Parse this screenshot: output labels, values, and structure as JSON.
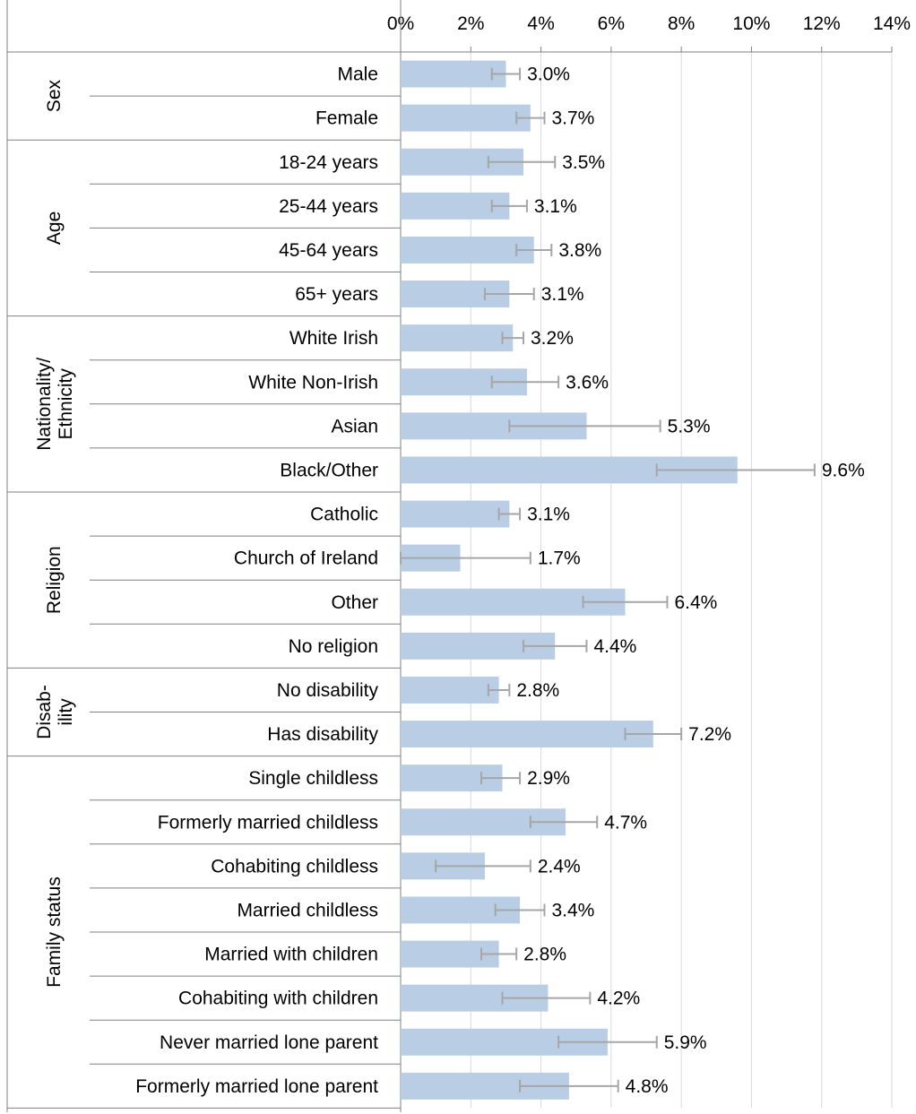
{
  "chart_data": {
    "type": "bar",
    "orientation": "horizontal",
    "title": "",
    "xlabel": "",
    "ylabel": "",
    "xlim": [
      0,
      14
    ],
    "x_ticks": [
      "0%",
      "2%",
      "4%",
      "6%",
      "8%",
      "10%",
      "12%",
      "14%"
    ],
    "grid": true,
    "legend": "none",
    "bar_color": "#b9cde5",
    "error_color": "#a6a6a6",
    "groups": [
      {
        "name": "Sex",
        "categories": [
          {
            "label": "Male",
            "value": 3.0,
            "value_label": "3.0%",
            "ci": [
              2.6,
              3.4
            ]
          },
          {
            "label": "Female",
            "value": 3.7,
            "value_label": "3.7%",
            "ci": [
              3.3,
              4.1
            ]
          }
        ]
      },
      {
        "name": "Age",
        "categories": [
          {
            "label": "18-24 years",
            "value": 3.5,
            "value_label": "3.5%",
            "ci": [
              2.5,
              4.4
            ]
          },
          {
            "label": "25-44 years",
            "value": 3.1,
            "value_label": "3.1%",
            "ci": [
              2.6,
              3.6
            ]
          },
          {
            "label": "45-64 years",
            "value": 3.8,
            "value_label": "3.8%",
            "ci": [
              3.3,
              4.3
            ]
          },
          {
            "label": "65+ years",
            "value": 3.1,
            "value_label": "3.1%",
            "ci": [
              2.4,
              3.8
            ]
          }
        ]
      },
      {
        "name": "Nationality/ Ethnicity",
        "name_lines": [
          "Nationality/",
          "Ethnicity"
        ],
        "categories": [
          {
            "label": "White Irish",
            "value": 3.2,
            "value_label": "3.2%",
            "ci": [
              2.9,
              3.5
            ]
          },
          {
            "label": "White Non-Irish",
            "value": 3.6,
            "value_label": "3.6%",
            "ci": [
              2.6,
              4.5
            ]
          },
          {
            "label": "Asian",
            "value": 5.3,
            "value_label": "5.3%",
            "ci": [
              3.1,
              7.4
            ]
          },
          {
            "label": "Black/Other",
            "value": 9.6,
            "value_label": "9.6%",
            "ci": [
              7.3,
              11.8
            ]
          }
        ]
      },
      {
        "name": "Religion",
        "categories": [
          {
            "label": "Catholic",
            "value": 3.1,
            "value_label": "3.1%",
            "ci": [
              2.8,
              3.4
            ]
          },
          {
            "label": "Church of Ireland",
            "value": 1.7,
            "value_label": "1.7%",
            "ci": [
              0.0,
              3.7
            ]
          },
          {
            "label": "Other",
            "value": 6.4,
            "value_label": "6.4%",
            "ci": [
              5.2,
              7.6
            ]
          },
          {
            "label": "No religion",
            "value": 4.4,
            "value_label": "4.4%",
            "ci": [
              3.5,
              5.3
            ]
          }
        ]
      },
      {
        "name": "Disab- ility",
        "name_lines": [
          "Disab-",
          "ility"
        ],
        "categories": [
          {
            "label": "No disability",
            "value": 2.8,
            "value_label": "2.8%",
            "ci": [
              2.5,
              3.1
            ]
          },
          {
            "label": "Has disability",
            "value": 7.2,
            "value_label": "7.2%",
            "ci": [
              6.4,
              8.0
            ]
          }
        ]
      },
      {
        "name": "Family status",
        "categories": [
          {
            "label": "Single childless",
            "value": 2.9,
            "value_label": "2.9%",
            "ci": [
              2.3,
              3.4
            ]
          },
          {
            "label": "Formerly married childless",
            "value": 4.7,
            "value_label": "4.7%",
            "ci": [
              3.7,
              5.6
            ]
          },
          {
            "label": "Cohabiting childless",
            "value": 2.4,
            "value_label": "2.4%",
            "ci": [
              1.0,
              3.7
            ]
          },
          {
            "label": "Married childless",
            "value": 3.4,
            "value_label": "3.4%",
            "ci": [
              2.7,
              4.1
            ]
          },
          {
            "label": "Married with children",
            "value": 2.8,
            "value_label": "2.8%",
            "ci": [
              2.3,
              3.3
            ]
          },
          {
            "label": "Cohabiting with children",
            "value": 4.2,
            "value_label": "4.2%",
            "ci": [
              2.9,
              5.4
            ]
          },
          {
            "label": "Never married lone parent",
            "value": 5.9,
            "value_label": "5.9%",
            "ci": [
              4.5,
              7.3
            ]
          },
          {
            "label": "Formerly married lone parent",
            "value": 4.8,
            "value_label": "4.8%",
            "ci": [
              3.4,
              6.2
            ]
          }
        ]
      }
    ]
  }
}
